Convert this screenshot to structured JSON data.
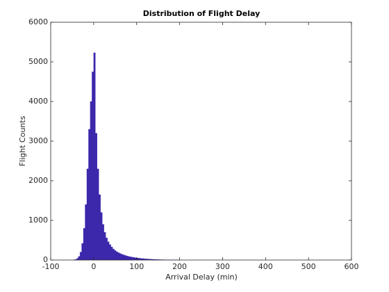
{
  "chart_data": {
    "type": "histogram",
    "title": "Distribution of Flight Delay",
    "xlabel": "Arrival Delay (min)",
    "ylabel": "Flight Counts",
    "bins": [
      -48,
      -44,
      -40,
      -36,
      -32,
      -28,
      -24,
      -20,
      -16,
      -12,
      -8,
      -4,
      0,
      4,
      8,
      12,
      16,
      20,
      24,
      28,
      32,
      36,
      40,
      44,
      48,
      52,
      56,
      60,
      64,
      68,
      72,
      76,
      80,
      84,
      88,
      92,
      96,
      100,
      104,
      108,
      112,
      116,
      120,
      124,
      128,
      132,
      136,
      140,
      144,
      148,
      152,
      156,
      160,
      164,
      168,
      172,
      176,
      180,
      184,
      188,
      192,
      196,
      200
    ],
    "counts": [
      5,
      15,
      40,
      90,
      200,
      420,
      800,
      1400,
      2300,
      3300,
      4000,
      4750,
      5230,
      3200,
      2300,
      1650,
      1200,
      900,
      700,
      560,
      460,
      390,
      330,
      280,
      240,
      210,
      185,
      165,
      145,
      130,
      115,
      100,
      90,
      80,
      72,
      65,
      58,
      52,
      46,
      41,
      37,
      33,
      29,
      26,
      23,
      20,
      18,
      16,
      14,
      12,
      10,
      9,
      8,
      7,
      6,
      5,
      4,
      4,
      3,
      3,
      2,
      2
    ],
    "color": "#3b27ab",
    "xlim": [
      -100,
      600
    ],
    "xticks": [
      -100,
      0,
      100,
      200,
      300,
      400,
      500,
      600
    ],
    "ylim": [
      0,
      6000
    ],
    "yticks": [
      0,
      1000,
      2000,
      3000,
      4000,
      5000,
      6000
    ]
  }
}
